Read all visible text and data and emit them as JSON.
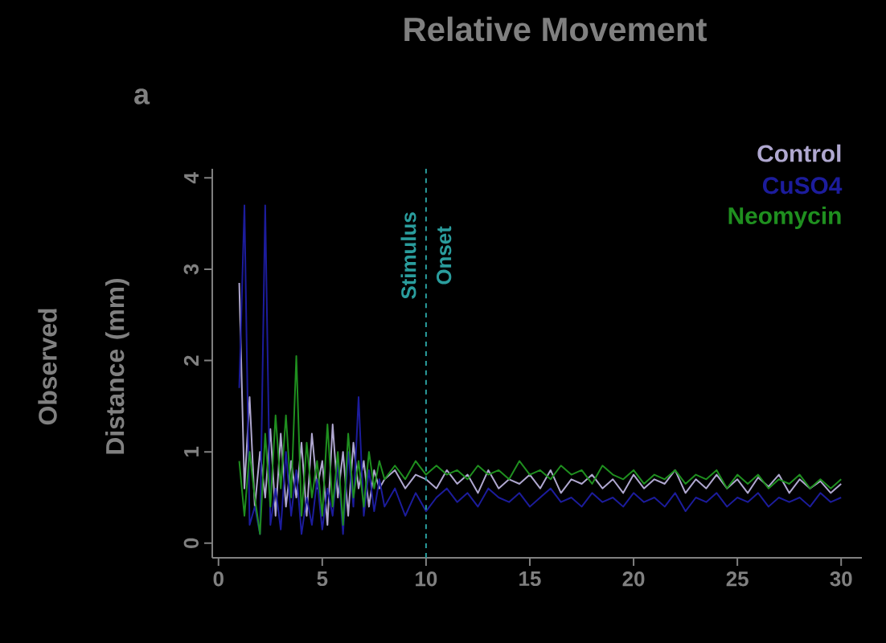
{
  "chart_data": {
    "type": "line",
    "title": "Relative Movement",
    "ylabel": "Observed Distance (mm)",
    "annotations": [
      "a"
    ],
    "x": [
      1,
      1.25,
      1.5,
      1.75,
      2,
      2.25,
      2.5,
      2.75,
      3,
      3.25,
      3.5,
      3.75,
      4,
      4.25,
      4.5,
      4.75,
      5,
      5.25,
      5.5,
      5.75,
      6,
      6.25,
      6.5,
      6.75,
      7,
      7.25,
      7.5,
      7.75,
      8,
      8.5,
      9,
      9.5,
      10,
      10.5,
      11,
      11.5,
      12,
      12.5,
      13,
      13.5,
      14,
      14.5,
      15,
      15.5,
      16,
      16.5,
      17,
      17.5,
      18,
      18.5,
      19,
      19.5,
      20,
      20.5,
      21,
      21.5,
      22,
      22.5,
      23,
      23.5,
      24,
      24.5,
      25,
      25.5,
      26,
      26.5,
      27,
      27.5,
      28,
      28.5,
      29,
      29.5,
      30
    ],
    "series": [
      {
        "name": "Control",
        "color": "#b0a8d0",
        "values": [
          2.85,
          0.6,
          1.6,
          0.4,
          1.0,
          0.5,
          1.25,
          0.3,
          1.2,
          0.4,
          0.9,
          0.5,
          1.1,
          0.3,
          1.2,
          0.6,
          0.9,
          0.2,
          1.3,
          0.5,
          1.0,
          0.3,
          1.1,
          0.6,
          0.9,
          0.4,
          0.8,
          0.6,
          0.7,
          0.8,
          0.6,
          0.75,
          0.7,
          0.6,
          0.8,
          0.65,
          0.75,
          0.55,
          0.8,
          0.6,
          0.7,
          0.65,
          0.75,
          0.6,
          0.8,
          0.55,
          0.7,
          0.65,
          0.75,
          0.6,
          0.7,
          0.55,
          0.75,
          0.6,
          0.7,
          0.65,
          0.8,
          0.55,
          0.7,
          0.6,
          0.75,
          0.6,
          0.7,
          0.55,
          0.72,
          0.62,
          0.75,
          0.55,
          0.7,
          0.6,
          0.68,
          0.55,
          0.65
        ]
      },
      {
        "name": "CuSO4",
        "color": "#1c1c9c",
        "values": [
          1.7,
          3.7,
          0.2,
          0.4,
          0.1,
          3.7,
          0.2,
          0.6,
          0.15,
          1.0,
          0.3,
          0.8,
          0.1,
          0.5,
          0.2,
          0.7,
          0.15,
          0.6,
          0.3,
          0.9,
          0.1,
          1.0,
          0.4,
          1.6,
          0.3,
          0.8,
          0.35,
          0.7,
          0.4,
          0.6,
          0.3,
          0.55,
          0.35,
          0.5,
          0.6,
          0.45,
          0.55,
          0.4,
          0.6,
          0.5,
          0.45,
          0.55,
          0.4,
          0.5,
          0.6,
          0.45,
          0.5,
          0.4,
          0.55,
          0.45,
          0.5,
          0.4,
          0.55,
          0.45,
          0.5,
          0.4,
          0.55,
          0.35,
          0.5,
          0.45,
          0.55,
          0.4,
          0.5,
          0.45,
          0.55,
          0.4,
          0.5,
          0.45,
          0.5,
          0.4,
          0.55,
          0.45,
          0.5
        ]
      },
      {
        "name": "Neomycin",
        "color": "#1f8f1f",
        "values": [
          0.9,
          0.3,
          1.0,
          0.5,
          0.1,
          1.2,
          0.4,
          1.4,
          0.6,
          1.4,
          0.5,
          2.05,
          0.3,
          1.1,
          0.5,
          0.9,
          0.3,
          1.3,
          0.4,
          1.0,
          0.2,
          1.2,
          0.5,
          0.9,
          0.4,
          1.0,
          0.6,
          0.9,
          0.7,
          0.85,
          0.7,
          0.9,
          0.75,
          0.85,
          0.75,
          0.8,
          0.7,
          0.85,
          0.75,
          0.8,
          0.7,
          0.9,
          0.75,
          0.8,
          0.7,
          0.85,
          0.75,
          0.8,
          0.65,
          0.85,
          0.75,
          0.7,
          0.8,
          0.65,
          0.75,
          0.7,
          0.8,
          0.65,
          0.75,
          0.7,
          0.8,
          0.6,
          0.75,
          0.65,
          0.75,
          0.6,
          0.7,
          0.65,
          0.75,
          0.6,
          0.7,
          0.6,
          0.7
        ]
      }
    ],
    "xlim": [
      -0.3,
      31
    ],
    "ylim": [
      -0.16,
      4.1
    ],
    "xticks": [
      0,
      5,
      10,
      15,
      20,
      25,
      30
    ],
    "yticks": [
      0,
      1,
      2,
      3,
      4
    ],
    "ref_lines": [
      {
        "axis": "x",
        "value": 10,
        "label": "Stimulus Onset",
        "color": "#2a9d9d",
        "line_style": "dashed"
      }
    ],
    "legend": "top right",
    "grid": false,
    "marker": "none",
    "line_style": "solid"
  }
}
